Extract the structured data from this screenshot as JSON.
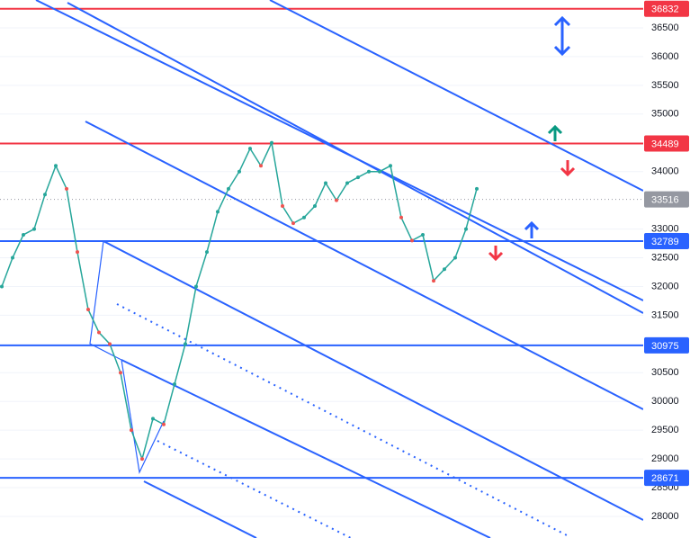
{
  "chart_data": {
    "type": "line",
    "values": [
      32000,
      32500,
      32900,
      33000,
      33600,
      34100,
      33700,
      32600,
      31600,
      31200,
      31000,
      30500,
      29500,
      29000,
      29700,
      29600,
      30300,
      31000,
      32000,
      32600,
      33300,
      33700,
      34000,
      34400,
      34100,
      34500,
      33400,
      33100,
      33200,
      33400,
      33800,
      33500,
      33800,
      33900,
      34000,
      34000,
      34100,
      33200,
      32800,
      32900,
      32100,
      32300,
      32500,
      33000,
      33700
    ],
    "color": "#26a69a",
    "ylim": [
      27624,
      36985
    ],
    "yticks": [
      28000,
      28500,
      29000,
      29500,
      30000,
      30500,
      31500,
      32000,
      32500,
      33000,
      34000,
      35000,
      35500,
      36000,
      36500
    ],
    "grid": true,
    "levels": [
      {
        "value": 36832,
        "color": "#f23645"
      },
      {
        "value": 34489,
        "color": "#f23645"
      },
      {
        "value": 33516,
        "color": "#9598a1"
      },
      {
        "value": 32789,
        "color": "#2962ff"
      },
      {
        "value": 30975,
        "color": "#2962ff"
      },
      {
        "value": 28671,
        "color": "#2962ff"
      }
    ]
  }
}
